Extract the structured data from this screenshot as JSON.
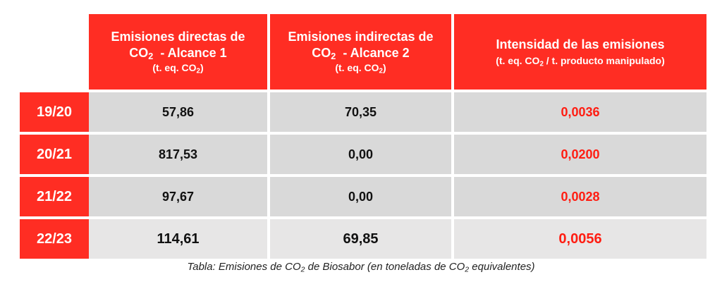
{
  "table": {
    "headers": {
      "col1": {
        "line1": "Emisiones directas de",
        "line2_pre": "CO",
        "line2_sub": "2",
        "line2_post": "  - Alcance 1",
        "unit_pre": "(t. eq. CO",
        "unit_sub": "2",
        "unit_post": ")"
      },
      "col2": {
        "line1": "Emisiones indirectas de",
        "line2_pre": "CO",
        "line2_sub": "2",
        "line2_post": "  - Alcance 2",
        "unit_pre": "(t. eq. CO",
        "unit_sub": "2",
        "unit_post": ")"
      },
      "col3": {
        "line1": "Intensidad de las emisiones",
        "unit_pre": "(t. eq. CO",
        "unit_sub": "2",
        "unit_post": " / t. producto manipulado)"
      }
    },
    "rows": [
      {
        "year": "19/20",
        "direct": "57,86",
        "indirect": "70,35",
        "intensity": "0,0036"
      },
      {
        "year": "20/21",
        "direct": "817,53",
        "indirect": "0,00",
        "intensity": "0,0200"
      },
      {
        "year": "21/22",
        "direct": "97,67",
        "indirect": "0,00",
        "intensity": "0,0028"
      },
      {
        "year": "22/23",
        "direct": "114,61",
        "indirect": "69,85",
        "intensity": "0,0056"
      }
    ]
  },
  "caption": {
    "pre": "Tabla: Emisiones de CO",
    "sub1": "2",
    "mid": " de Biosabor (en toneladas de CO",
    "sub2": "2",
    "post": " equivalentes)"
  },
  "colors": {
    "accent_red": "#ff2d23",
    "cell_gray": "#d9d9d9",
    "intensity_text": "#ff1d12"
  }
}
